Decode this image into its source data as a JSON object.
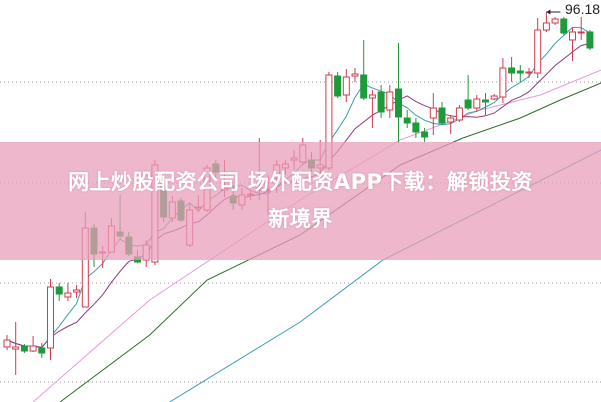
{
  "banner": {
    "line1": "网上炒股配资公司 场外配资APP下载：解锁投资",
    "line2": "新境界"
  },
  "chart_data": {
    "type": "candlestick",
    "title": "",
    "xlabel": "",
    "ylabel": "",
    "ylim": [
      57.18,
      97.38
    ],
    "grid": true,
    "grid_style": "dotted",
    "grid_levels": [
      89.18,
      79.08,
      69.08,
      59.18
    ],
    "colors": {
      "up": "#d23a4e",
      "down": "#1e9a3a",
      "ma5": "#3c9fa8",
      "ma10": "#8b3b7d",
      "ma_pink": "#e79be0",
      "ma_green": "#2f6e2a",
      "ma_teal": "#3a9cb0",
      "grid": "#999999"
    },
    "peak_annotation": {
      "value": "96.18",
      "index": 62
    },
    "candles": [
      [
        62.68,
        63.38,
        63.88,
        62.38
      ],
      [
        62.48,
        62.68,
        65.18,
        59.88
      ],
      [
        62.78,
        62.28,
        62.98,
        62.08
      ],
      [
        62.28,
        62.78,
        63.78,
        62.18
      ],
      [
        62.58,
        62.08,
        63.08,
        61.58
      ],
      [
        62.58,
        68.68,
        69.48,
        61.38
      ],
      [
        68.68,
        67.98,
        69.08,
        67.28
      ],
      [
        67.68,
        68.08,
        69.08,
        67.28
      ],
      [
        68.18,
        68.38,
        68.88,
        67.58
      ],
      [
        66.68,
        74.58,
        76.18,
        66.68
      ],
      [
        74.58,
        71.98,
        74.98,
        70.68
      ],
      [
        72.08,
        72.18,
        72.78,
        70.58
      ],
      [
        72.18,
        74.78,
        75.58,
        72.18
      ],
      [
        74.18,
        73.78,
        77.88,
        73.38
      ],
      [
        73.68,
        71.98,
        74.18,
        71.78
      ],
      [
        71.68,
        71.18,
        72.38,
        71.08
      ],
      [
        71.38,
        72.88,
        73.38,
        70.68
      ],
      [
        71.18,
        80.88,
        81.38,
        70.88
      ],
      [
        78.88,
        75.68,
        79.58,
        75.18
      ],
      [
        75.58,
        77.18,
        77.78,
        75.18
      ],
      [
        77.28,
        75.38,
        77.58,
        75.18
      ],
      [
        72.88,
        76.38,
        77.08,
        72.68
      ],
      [
        76.58,
        76.68,
        77.88,
        76.18
      ],
      [
        76.38,
        80.58,
        80.88,
        76.18
      ],
      [
        80.98,
        80.18,
        81.38,
        79.58
      ],
      [
        78.38,
        78.58,
        81.38,
        77.68
      ],
      [
        77.68,
        77.08,
        78.88,
        76.38
      ],
      [
        76.88,
        77.88,
        78.58,
        76.38
      ],
      [
        77.88,
        77.98,
        78.38,
        77.38
      ],
      [
        78.38,
        78.58,
        83.58,
        77.38
      ],
      [
        78.38,
        78.48,
        79.88,
        75.88
      ],
      [
        79.58,
        80.88,
        81.38,
        78.08
      ],
      [
        80.58,
        80.98,
        81.38,
        79.88
      ],
      [
        81.38,
        81.58,
        82.38,
        80.38
      ],
      [
        81.18,
        82.88,
        83.58,
        80.88
      ],
      [
        81.38,
        80.58,
        82.18,
        80.18
      ],
      [
        80.58,
        80.88,
        83.38,
        79.88
      ],
      [
        80.58,
        89.88,
        90.18,
        80.38
      ],
      [
        89.78,
        87.78,
        90.18,
        87.58
      ],
      [
        87.88,
        89.68,
        90.48,
        87.18
      ],
      [
        89.78,
        89.98,
        90.58,
        89.18
      ],
      [
        89.88,
        87.58,
        93.38,
        87.38
      ],
      [
        87.58,
        87.88,
        88.38,
        84.58
      ],
      [
        88.18,
        86.18,
        88.88,
        85.58
      ],
      [
        86.38,
        88.18,
        88.88,
        85.58
      ],
      [
        88.48,
        85.68,
        93.08,
        83.08
      ],
      [
        85.58,
        85.08,
        86.38,
        84.58
      ],
      [
        85.08,
        84.18,
        85.58,
        83.58
      ],
      [
        84.18,
        83.68,
        84.58,
        83.18
      ],
      [
        85.58,
        86.58,
        88.08,
        83.88
      ],
      [
        86.58,
        85.08,
        87.18,
        84.88
      ],
      [
        85.18,
        85.58,
        85.88,
        83.98
      ],
      [
        85.38,
        86.58,
        86.88,
        85.18
      ],
      [
        87.38,
        86.58,
        89.88,
        86.38
      ],
      [
        86.58,
        87.48,
        87.88,
        86.18
      ],
      [
        87.38,
        87.18,
        88.08,
        85.88
      ],
      [
        87.48,
        87.78,
        87.98,
        87.38
      ],
      [
        87.68,
        90.58,
        91.58,
        87.08
      ],
      [
        90.58,
        90.08,
        91.68,
        89.18
      ],
      [
        90.28,
        90.08,
        90.88,
        89.18
      ],
      [
        90.18,
        90.18,
        90.58,
        89.58
      ],
      [
        90.08,
        94.38,
        95.58,
        89.58
      ],
      [
        94.38,
        95.08,
        96.18,
        94.18
      ],
      [
        95.08,
        95.48,
        95.68,
        94.88
      ],
      [
        95.48,
        94.08,
        95.68,
        93.88
      ],
      [
        93.38,
        94.18,
        94.58,
        91.28
      ],
      [
        94.08,
        94.18,
        95.68,
        93.38
      ],
      [
        94.18,
        92.58,
        94.38,
        92.38
      ]
    ],
    "moving_averages": [
      {
        "key": "ma_pink",
        "points": [
          [
            3,
            57.18
          ],
          [
            16.4,
            67.38
          ],
          [
            33.7,
            77.38
          ],
          [
            45.2,
            83.38
          ],
          [
            54.4,
            86.38
          ],
          [
            61.3,
            87.88
          ],
          [
            68.3,
            90.38
          ]
        ]
      },
      {
        "key": "ma_green",
        "points": [
          [
            6.1,
            57.18
          ],
          [
            16.4,
            63.88
          ],
          [
            23,
            69.38
          ],
          [
            33.7,
            73.88
          ],
          [
            45.2,
            80.88
          ],
          [
            52.4,
            83.58
          ],
          [
            59,
            85.58
          ],
          [
            63.6,
            87.38
          ],
          [
            68.3,
            89.08
          ]
        ]
      },
      {
        "key": "ma_teal",
        "points": [
          [
            18.7,
            57.18
          ],
          [
            33.7,
            65.18
          ],
          [
            43.2,
            71.38
          ],
          [
            68.3,
            82.38
          ]
        ]
      }
    ]
  }
}
